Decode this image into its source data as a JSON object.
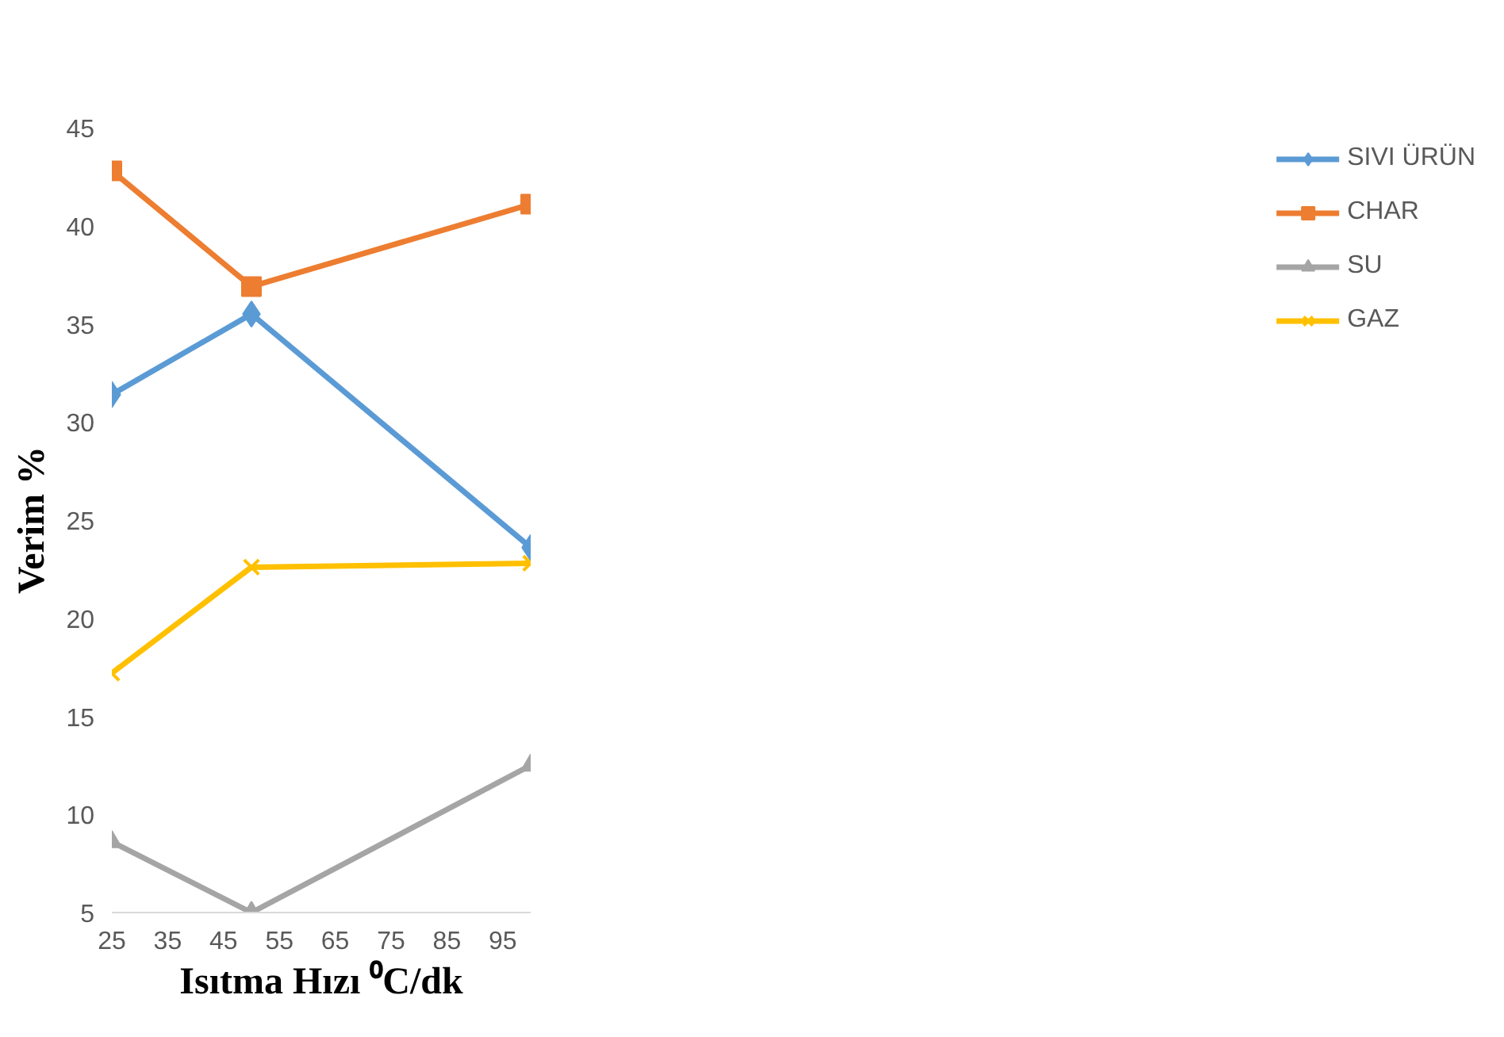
{
  "chart_data": {
    "type": "line",
    "xlabel": "Isıtma Hızı ⁰C/dk",
    "ylabel": "Verim %",
    "x": [
      25,
      50,
      100
    ],
    "xlim": [
      25,
      100
    ],
    "xticks": [
      25,
      35,
      45,
      55,
      65,
      75,
      85,
      95
    ],
    "ylim": [
      5,
      45
    ],
    "yticks": [
      5,
      10,
      15,
      20,
      25,
      30,
      35,
      40,
      45
    ],
    "grid": false,
    "legend": "right",
    "series": [
      {
        "name": "SIVI ÜRÜN",
        "color": "#5b9bd5",
        "marker": "diamond",
        "values": [
          31.4,
          35.5,
          23.6
        ]
      },
      {
        "name": "CHAR",
        "color": "#ed7d31",
        "marker": "square",
        "values": [
          42.8,
          36.9,
          41.1
        ]
      },
      {
        "name": "SU",
        "color": "#a5a5a5",
        "marker": "triangle",
        "values": [
          8.6,
          5.0,
          12.5
        ]
      },
      {
        "name": "GAZ",
        "color": "#ffc000",
        "marker": "cross",
        "values": [
          17.2,
          22.6,
          22.8
        ]
      }
    ]
  }
}
